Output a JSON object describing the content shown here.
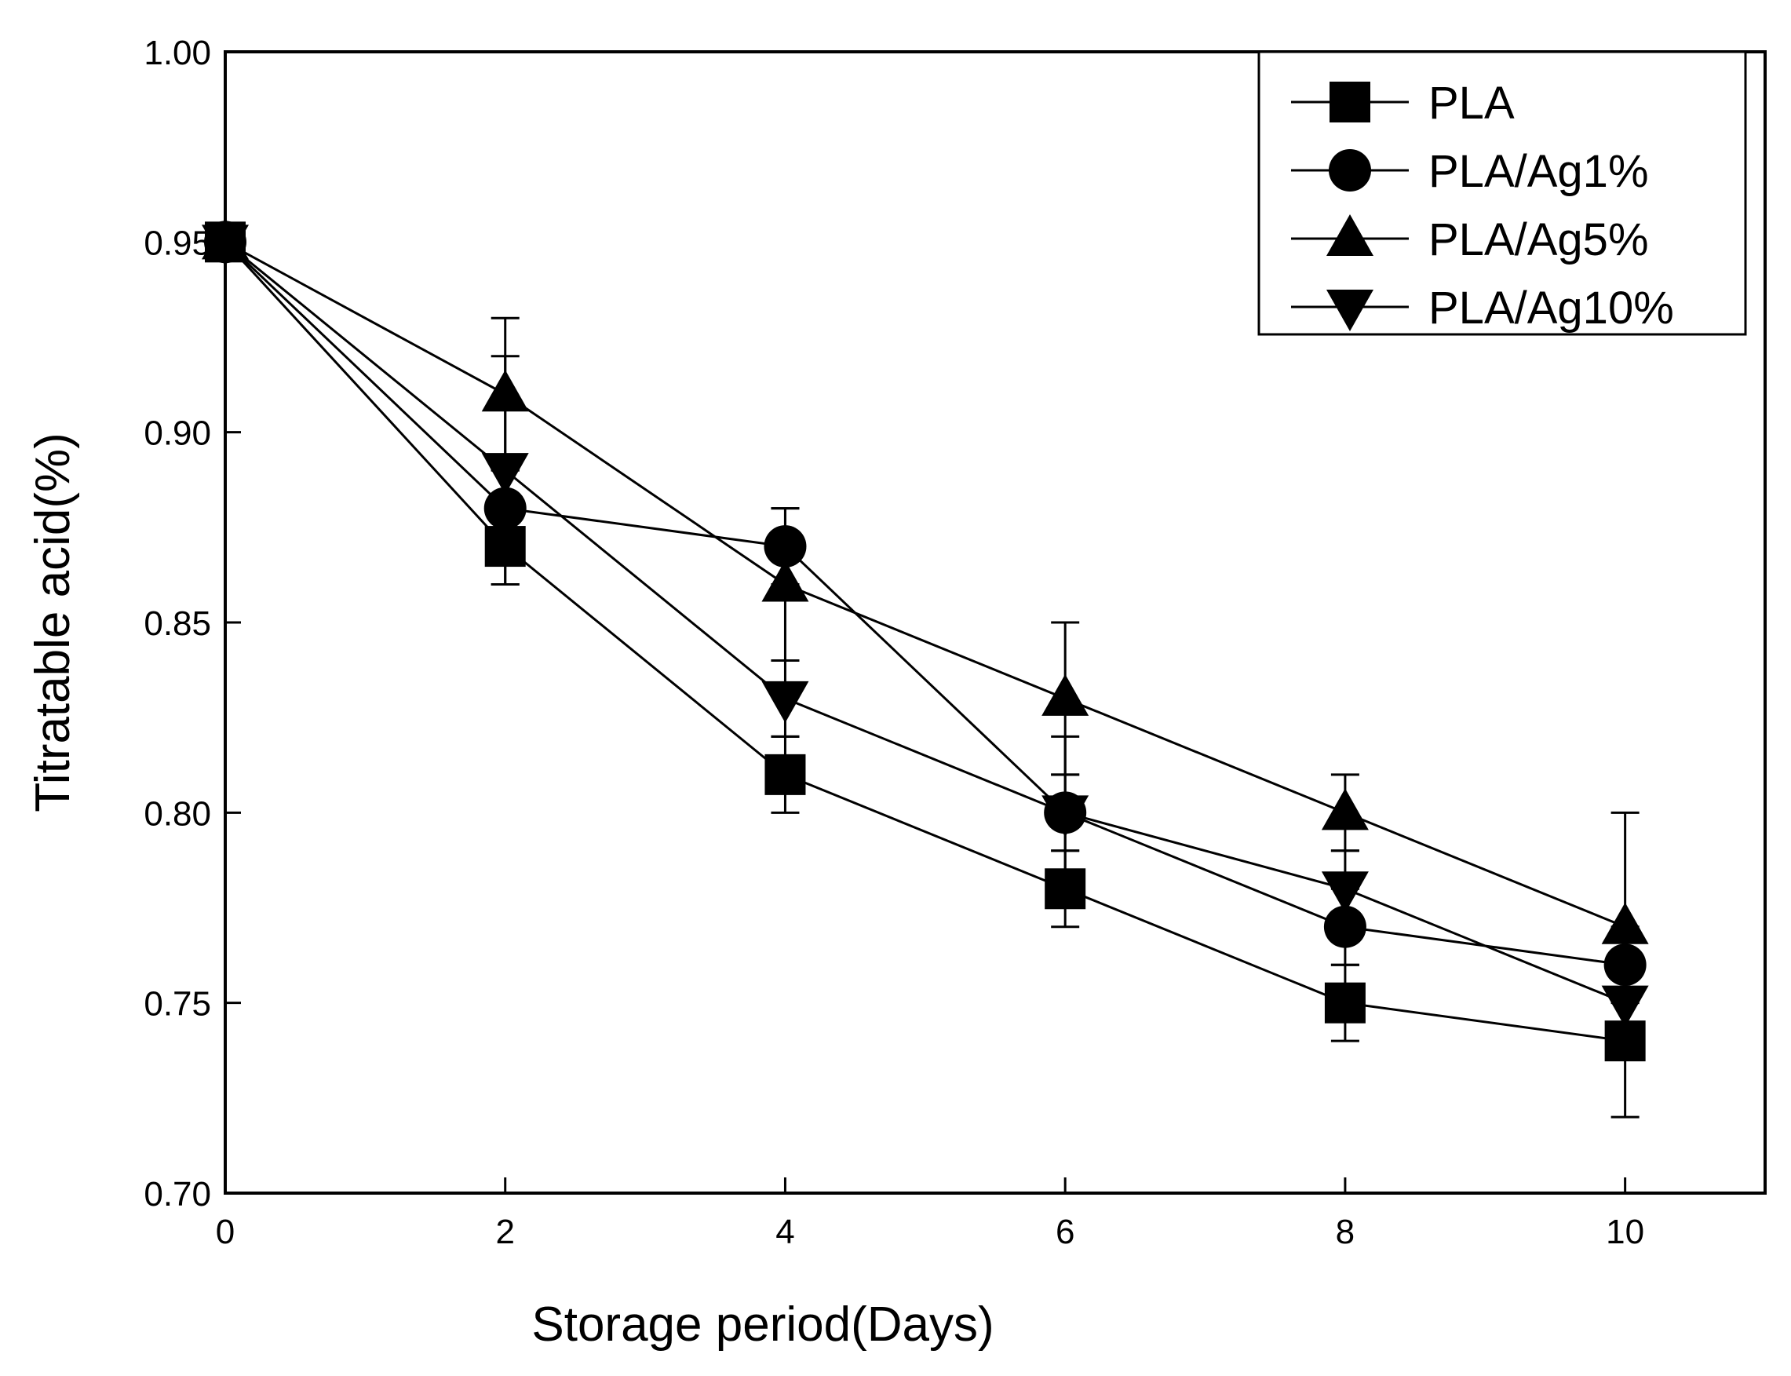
{
  "chart_data": {
    "type": "line",
    "title": "",
    "xlabel": "Storage period(Days)",
    "ylabel": "Titratable acid(%)",
    "xlim": [
      0,
      11
    ],
    "ylim": [
      0.7,
      1.0
    ],
    "x_ticks": [
      0,
      2,
      4,
      6,
      8,
      10
    ],
    "x_tick_labels": [
      "0",
      "2",
      "4",
      "6",
      "8",
      "10"
    ],
    "y_ticks": [
      0.7,
      0.75,
      0.8,
      0.85,
      0.9,
      0.95,
      1.0
    ],
    "y_tick_labels": [
      "0.70",
      "0.75",
      "0.80",
      "0.85",
      "0.90",
      "0.95",
      "1.00"
    ],
    "grid": false,
    "legend_position": "top-right",
    "x": [
      0,
      2,
      4,
      6,
      8,
      10
    ],
    "series": [
      {
        "name": "PLA",
        "marker": "square",
        "values": [
          0.95,
          0.87,
          0.81,
          0.78,
          0.75,
          0.74
        ],
        "errors": [
          0,
          0.01,
          0.01,
          0.01,
          0.01,
          0.02
        ]
      },
      {
        "name": "PLA/Ag1%",
        "marker": "circle",
        "values": [
          0.95,
          0.88,
          0.87,
          0.8,
          0.77,
          0.76
        ],
        "errors": [
          0,
          0.01,
          0.01,
          0.01,
          0.01,
          0.01
        ]
      },
      {
        "name": "PLA/Ag5%",
        "marker": "triangle-up",
        "values": [
          0.95,
          0.91,
          0.86,
          0.83,
          0.8,
          0.77
        ],
        "errors": [
          0,
          0.02,
          0.02,
          0.02,
          0.01,
          0.03
        ]
      },
      {
        "name": "PLA/Ag10%",
        "marker": "triangle-down",
        "values": [
          0.95,
          0.89,
          0.83,
          0.8,
          0.78,
          0.75
        ],
        "errors": [
          0,
          0.03,
          0.01,
          0.02,
          0.01,
          0.01
        ]
      }
    ],
    "colors": {
      "line": "#000000",
      "background": "#ffffff"
    }
  }
}
